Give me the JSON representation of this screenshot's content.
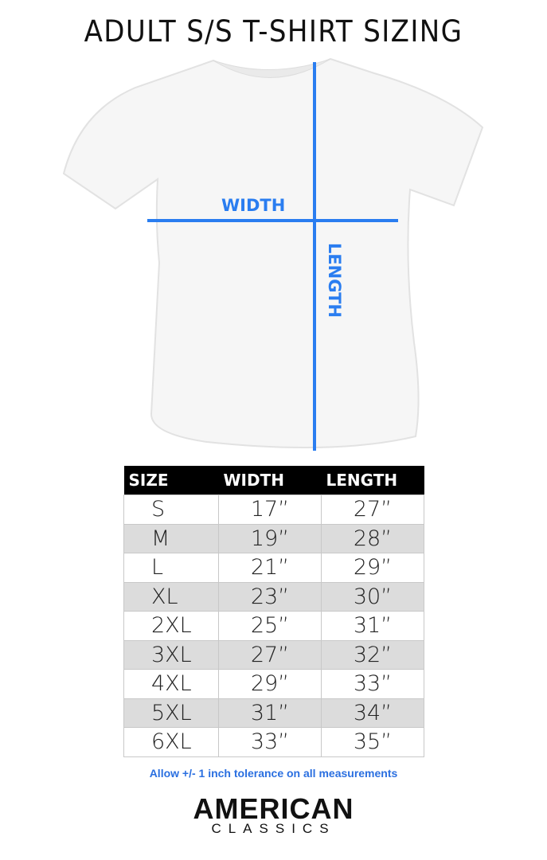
{
  "title": "ADULT S/S T-SHIRT SIZING",
  "diagram": {
    "width_label": "WIDTH",
    "length_label": "LENGTH",
    "line_color": "#2a7df0"
  },
  "table": {
    "headers": [
      "SIZE",
      "WIDTH",
      "LENGTH"
    ],
    "rows": [
      [
        "S",
        "17”",
        "27”"
      ],
      [
        "M",
        "19”",
        "28”"
      ],
      [
        "L",
        "21”",
        "29”"
      ],
      [
        "XL",
        "23”",
        "30”"
      ],
      [
        "2XL",
        "25”",
        "31”"
      ],
      [
        "3XL",
        "27”",
        "32”"
      ],
      [
        "4XL",
        "29”",
        "33”"
      ],
      [
        "5XL",
        "31”",
        "34”"
      ],
      [
        "6XL",
        "33”",
        "35”"
      ]
    ]
  },
  "note": "Allow +/- 1 inch tolerance on all measurements",
  "logo": {
    "line1": "AMERICAN",
    "line2": "CLASSICS"
  }
}
